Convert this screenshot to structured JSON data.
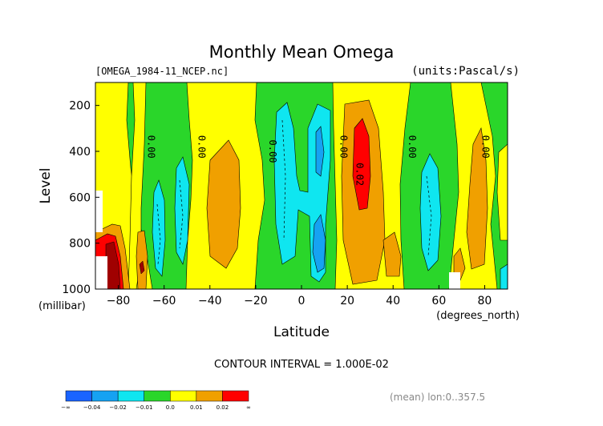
{
  "chart_data": {
    "type": "heatmap",
    "subtype": "filled-contour",
    "title": "Monthly Mean Omega",
    "file_label": "[OMEGA_1984-11_NCEP.nc]",
    "units_label": "(units:Pascal/s)",
    "xlabel": "Latitude",
    "xunits": "(degrees_north)",
    "ylabel": "Level",
    "yunits": "(millibar)",
    "xlim": [
      -90,
      90
    ],
    "ylim": [
      1000,
      100
    ],
    "x_ticks": [
      -80,
      -60,
      -40,
      -20,
      0,
      20,
      40,
      60,
      80
    ],
    "y_ticks": [
      200,
      400,
      600,
      800,
      1000
    ],
    "contour_interval_text": "CONTOUR INTERVAL = 1.000E-02",
    "footer_text": "(mean) lon:0..357.5",
    "contour_labels": [
      {
        "text": "0.00",
        "lat": -67,
        "level": 380
      },
      {
        "text": "0.00",
        "lat": -45,
        "level": 380
      },
      {
        "text": "0.00",
        "lat": -14,
        "level": 400
      },
      {
        "text": "0.00",
        "lat": 17,
        "level": 380
      },
      {
        "text": "0.02",
        "lat": 24,
        "level": 500
      },
      {
        "text": "0.00",
        "lat": 47,
        "level": 380
      },
      {
        "text": "0.00",
        "lat": 79,
        "level": 380
      }
    ],
    "colorbar": {
      "levels": [
        "-∞",
        "-0.04",
        "-0.02",
        "-0.01",
        "0.0",
        "0.01",
        "0.02",
        "∞"
      ],
      "colors": [
        "#1a64ff",
        "#16a2f2",
        "#0fe6f0",
        "#2ad62a",
        "#ffff00",
        "#f0a000",
        "#ff0000"
      ]
    },
    "colors": {
      "blue": "#1a64ff",
      "mid_blue": "#16a2f2",
      "cyan": "#0fe6f0",
      "green": "#2ad62a",
      "yellow": "#ffff00",
      "orange": "#f0a000",
      "red": "#ff0000",
      "dark_red": "#a00000"
    }
  }
}
